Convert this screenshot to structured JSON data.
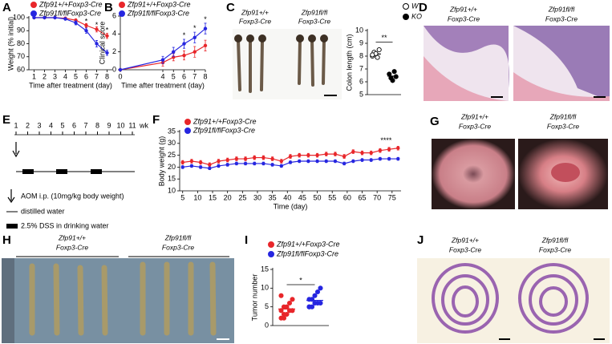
{
  "panels": [
    "A",
    "B",
    "C",
    "D",
    "E",
    "F",
    "G",
    "H",
    "I",
    "J"
  ],
  "photo_captions": {
    "C": [
      [
        "Zfp91+/+",
        "Foxp3-Cre"
      ],
      [
        "Zfp91fl/fl",
        "Foxp3-Cre"
      ]
    ],
    "D": [
      [
        "Zfp91+/+",
        "Foxp3-Cre"
      ],
      [
        "Zfp91fl/fl",
        "Foxp3-Cre"
      ]
    ],
    "G": [
      [
        "Zfp91+/+",
        "Foxp3-Cre"
      ],
      [
        "Zfp91fl/fl",
        "Foxp3-Cre"
      ]
    ],
    "H": [
      [
        "Zfp91+/+",
        "Foxp3-Cre"
      ],
      [
        "Zfp91fl/fl",
        "Foxp3-Cre"
      ]
    ],
    "J": [
      [
        "Zfp91+/+",
        "Foxp3-Cre"
      ],
      [
        "Zfp91fl/fl",
        "Foxp3-Cre"
      ]
    ]
  },
  "schedule": {
    "weeks": [
      1,
      2,
      3,
      4,
      5,
      6,
      7,
      8,
      9,
      10,
      11
    ],
    "unit": "wk",
    "legend": [
      "AOM i.p. (10mg/kg body weight)",
      "distilled water",
      "2.5% DSS in drinking water"
    ]
  },
  "chart_data": [
    {
      "type": "line",
      "ylabel": "Weight (% initial)",
      "xlabel": "Time after treatment (day)",
      "x": [
        1,
        2,
        3,
        4,
        5,
        6,
        7,
        8
      ],
      "xlim": [
        0.5,
        8.5
      ],
      "xticks": [
        1,
        2,
        3,
        4,
        5,
        6,
        7,
        8
      ],
      "ylim": [
        60,
        100
      ],
      "yticks": [
        60,
        70,
        80,
        90,
        100
      ],
      "series": [
        {
          "name": "Zfp91+/+Foxp3-Cre",
          "color": "#e8262a",
          "values": [
            100,
            100,
            100,
            99.5,
            98,
            94,
            91,
            86
          ],
          "errors": [
            0.3,
            0.3,
            0.4,
            0.6,
            1,
            1.5,
            2,
            2
          ]
        },
        {
          "name": "Zfp91fl/flFoxp3-Cre",
          "color": "#2626e0",
          "values": [
            100,
            100,
            100,
            99,
            96,
            90,
            80,
            73
          ],
          "errors": [
            0.3,
            0.3,
            0.4,
            0.8,
            1.5,
            2,
            2.5,
            2
          ]
        }
      ],
      "annotations": [
        {
          "x": 6,
          "y": 97,
          "text": "*"
        },
        {
          "x": 7,
          "y": 94,
          "text": "*"
        },
        {
          "x": 8,
          "y": 90,
          "text": "*"
        }
      ]
    },
    {
      "type": "line",
      "ylabel": "Clinical score",
      "xlabel": "Time after treatment (day)",
      "x": [
        0,
        4,
        5,
        6,
        7,
        8
      ],
      "xlim": [
        0,
        8
      ],
      "xticks": [
        0,
        4,
        5,
        6,
        7,
        8
      ],
      "ylim": [
        0,
        6
      ],
      "yticks": [
        0,
        2,
        4,
        6
      ],
      "series": [
        {
          "name": "Zfp91+/+Foxp3-Cre",
          "color": "#e8262a",
          "values": [
            0,
            0.8,
            1.4,
            1.6,
            2,
            2.7
          ],
          "errors": [
            0.1,
            0.4,
            0.4,
            0.5,
            0.6,
            0.6
          ]
        },
        {
          "name": "Zfp91fl/flFoxp3-Cre",
          "color": "#2626e0",
          "values": [
            0,
            1.1,
            2,
            2.9,
            3.6,
            4.6
          ],
          "errors": [
            0.1,
            0.4,
            0.5,
            0.5,
            0.6,
            0.6
          ]
        }
      ],
      "annotations": [
        {
          "x": 6,
          "y": 3.8,
          "text": "*"
        },
        {
          "x": 7,
          "y": 4.6,
          "text": "*"
        },
        {
          "x": 8,
          "y": 5.6,
          "text": "*"
        }
      ]
    },
    {
      "type": "strip",
      "ylabel": "Colon length (cm)",
      "ylim": [
        5,
        10
      ],
      "yticks": [
        5,
        6,
        7,
        8,
        9,
        10
      ],
      "series": [
        {
          "name": "WT",
          "color": "#000000",
          "filled": false,
          "values": [
            8.0,
            8.3,
            8.2,
            7.9,
            8.5,
            8.1
          ]
        },
        {
          "name": "KO",
          "color": "#000000",
          "filled": true,
          "values": [
            6.6,
            6.3,
            6.1,
            6.8,
            6.4
          ]
        }
      ],
      "annotations": [
        {
          "x": 0.5,
          "y": 9.4,
          "text": "**"
        }
      ]
    },
    {
      "type": "line",
      "ylabel": "Body weight (g)",
      "xlabel": "Time (day)",
      "x": [
        5,
        8,
        11,
        14,
        17,
        20,
        23,
        26,
        29,
        32,
        35,
        38,
        41,
        44,
        47,
        50,
        53,
        56,
        59,
        62,
        65,
        68,
        71,
        74,
        77
      ],
      "xlim": [
        4,
        78
      ],
      "xticks": [
        5,
        10,
        15,
        20,
        25,
        30,
        35,
        40,
        45,
        50,
        55,
        60,
        65,
        70,
        75
      ],
      "ylim": [
        10,
        35
      ],
      "yticks": [
        10,
        15,
        20,
        25,
        30,
        35
      ],
      "series": [
        {
          "name": "Zfp91+/+Foxp3-Cre",
          "color": "#e8262a",
          "values": [
            22,
            22.5,
            22,
            21,
            22.5,
            23,
            23.5,
            23.5,
            24,
            24,
            23.5,
            22.5,
            24.5,
            25,
            25,
            25,
            25.5,
            25.5,
            24.5,
            26.5,
            26,
            26,
            27,
            27.5,
            28
          ],
          "errors": [
            0.8,
            0.8,
            0.8,
            0.8,
            0.8,
            0.8,
            0.8,
            0.8,
            0.8,
            0.8,
            0.8,
            0.8,
            0.8,
            0.8,
            0.8,
            0.8,
            0.8,
            0.8,
            0.8,
            0.8,
            0.8,
            0.8,
            0.8,
            0.8,
            0.8
          ]
        },
        {
          "name": "Zfp91fl/flFoxp3-Cre",
          "color": "#2626e0",
          "values": [
            20,
            20.5,
            20,
            19.5,
            20.5,
            21,
            21.5,
            21.5,
            21.5,
            21.5,
            21,
            20.5,
            22,
            22.5,
            22.5,
            22.5,
            22.5,
            22.5,
            21.5,
            22.5,
            23,
            23,
            23.5,
            23.5,
            23.5
          ],
          "errors": [
            0.6,
            0.6,
            0.6,
            0.6,
            0.6,
            0.6,
            0.6,
            0.6,
            0.6,
            0.6,
            0.6,
            0.6,
            0.6,
            0.6,
            0.6,
            0.6,
            0.6,
            0.6,
            0.6,
            0.6,
            0.6,
            0.6,
            0.6,
            0.6,
            0.6
          ]
        }
      ],
      "annotations": [
        {
          "x": 73,
          "y": 31,
          "text": "****"
        }
      ]
    },
    {
      "type": "strip",
      "ylabel": "Tumor number",
      "ylim": [
        0,
        15
      ],
      "yticks": [
        0,
        5,
        10,
        15
      ],
      "series": [
        {
          "name": "Zfp91+/+Foxp3-Cre",
          "color": "#e8262a",
          "filled": true,
          "values": [
            2,
            3,
            3,
            4,
            4,
            4,
            5,
            5,
            6,
            7,
            8,
            2
          ]
        },
        {
          "name": "Zfp91fl/flFoxp3-Cre",
          "color": "#2626e0",
          "filled": true,
          "values": [
            5,
            5,
            6,
            6,
            6,
            7,
            7,
            8,
            9,
            10,
            5
          ]
        }
      ],
      "annotations": [
        {
          "x": 0.5,
          "y": 12,
          "text": "*"
        }
      ]
    }
  ]
}
